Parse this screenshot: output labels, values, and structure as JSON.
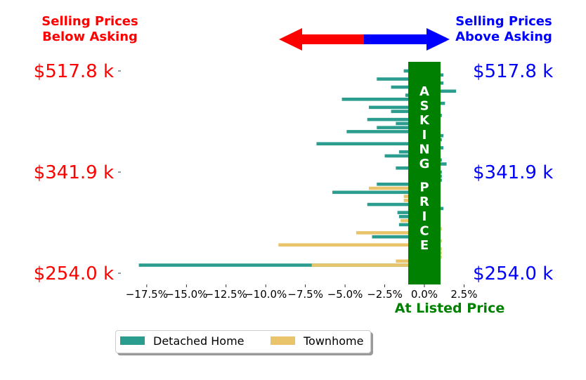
{
  "header_left": "Selling Prices\nBelow Asking",
  "header_right": "Selling Prices\nAbove Asking",
  "asking_label": "ASKING PRICE",
  "at_listed_label": "At Listed Price",
  "colors": {
    "detached": "#2a9d8f",
    "townhome": "#e9c46a",
    "below": "#ff0000",
    "above": "#0000ff",
    "asking": "#008000"
  },
  "legend": [
    {
      "name": "Detached Home",
      "color": "#2a9d8f"
    },
    {
      "name": "Townhome",
      "color": "#e9c46a"
    }
  ],
  "chart_data": {
    "type": "bar",
    "orientation": "horizontal",
    "xlim": [
      -19,
      3.5
    ],
    "x_ticks": [
      "−17.5%",
      "−15.0%",
      "−12.5%",
      "−10.0%",
      "−7.5%",
      "−5.0%",
      "−2.5%",
      "0.0%",
      "2.5%"
    ],
    "x_tick_values": [
      -17.5,
      -15,
      -12.5,
      -10,
      -7.5,
      -5,
      -2.5,
      0,
      2.5
    ],
    "y_tick_labels": [
      "$517.8 k",
      "$341.9 k",
      "$254.0 k"
    ],
    "y_tick_rows": [
      0,
      25,
      50
    ],
    "row_count": 51,
    "series": [
      {
        "name": "Detached Home",
        "values": [
          -1.3,
          1.2,
          -3.0,
          1.2,
          -2.1,
          2.0,
          -1.2,
          -5.2,
          1.3,
          -3.5,
          -2.1,
          1.1,
          -3.6,
          -1.8,
          -3.0,
          -4.9,
          1.2,
          1.1,
          -6.8,
          1.2,
          -1.6,
          -2.5,
          1.1,
          1.4,
          -1.8,
          1.1,
          1.1,
          1.1,
          -3.0,
          null,
          -5.8,
          null,
          0.5,
          -3.6,
          1.2,
          -1.7,
          -1.6,
          null,
          -1.6,
          null,
          null,
          -3.3,
          null,
          null,
          null,
          null,
          null,
          null,
          -18.0,
          null,
          null
        ]
      },
      {
        "name": "Townhome",
        "values": [
          null,
          null,
          null,
          null,
          null,
          null,
          null,
          null,
          null,
          null,
          null,
          null,
          null,
          null,
          null,
          null,
          null,
          null,
          null,
          null,
          null,
          null,
          null,
          null,
          null,
          null,
          null,
          null,
          null,
          -3.5,
          null,
          -1.3,
          -1.3,
          null,
          null,
          null,
          null,
          -1.5,
          null,
          1.1,
          -4.3,
          null,
          1.1,
          -9.2,
          1.1,
          1.1,
          1.1,
          -1.8,
          -7.1,
          null,
          null
        ]
      }
    ]
  }
}
